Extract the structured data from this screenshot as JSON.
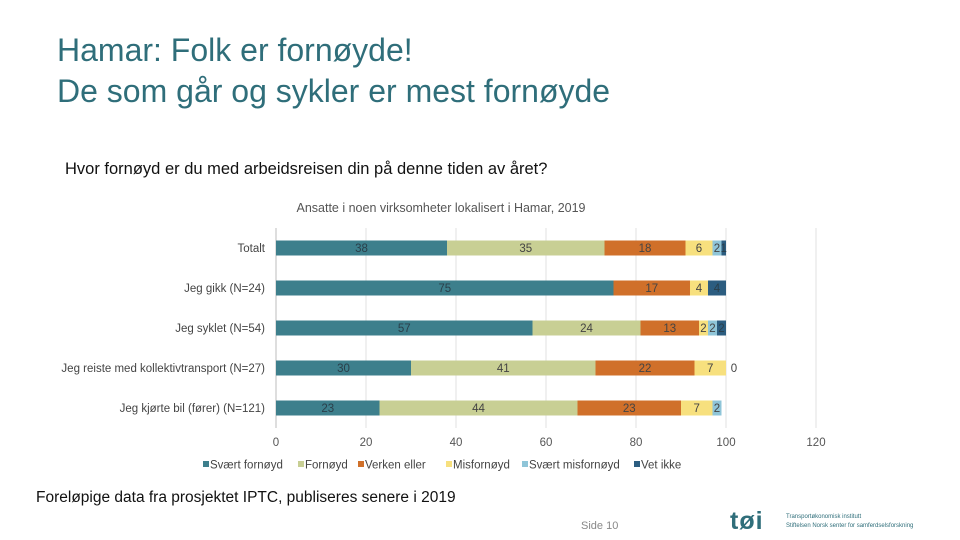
{
  "slide": {
    "title_line1": "Hamar: Folk er fornøyde!",
    "title_line2": "De som går og sykler er mest fornøyde",
    "question": "Hvor fornøyd er du med arbeidsreisen din på denne tiden av året?",
    "footnote": "Foreløpige data fra prosjektet IPTC, publiseres senere i 2019",
    "page_label": "Side",
    "page_number": "10",
    "logo": {
      "mark": "tøi",
      "line1": "Transportøkonomisk institutt",
      "line2": "Stiftelsen Norsk senter for samferdselsforskning"
    }
  },
  "chart_data": {
    "type": "bar",
    "orientation": "horizontal-stacked",
    "title": "Ansatte i noen virksomheter lokalisert i Hamar, 2019",
    "categories": [
      "Totalt",
      "Jeg gikk (N=24)",
      "Jeg syklet (N=54)",
      "Jeg reiste med kollektivtransport (N=27)",
      "Jeg kjørte bil (fører) (N=121)"
    ],
    "series": [
      {
        "name": "Svært fornøyd",
        "color": "#3d7f8c",
        "values": [
          38,
          75,
          57,
          30,
          23
        ]
      },
      {
        "name": "Fornøyd",
        "color": "#c8cf94",
        "values": [
          35,
          0,
          24,
          41,
          44
        ]
      },
      {
        "name": "Verken eller",
        "color": "#d0702a",
        "values": [
          18,
          17,
          13,
          22,
          23
        ]
      },
      {
        "name": "Misfornøyd",
        "color": "#f7e07e",
        "values": [
          6,
          4,
          2,
          7,
          7
        ]
      },
      {
        "name": "Svært misfornøyd",
        "color": "#8fc5d8",
        "values": [
          2,
          0,
          2,
          0,
          2
        ]
      },
      {
        "name": "Vet ikke",
        "color": "#2c5d80",
        "values": [
          1,
          4,
          2,
          0,
          0
        ]
      }
    ],
    "xlim": [
      0,
      120
    ],
    "xticks": [
      0,
      20,
      40,
      60,
      80,
      100,
      120
    ],
    "legend_position": "bottom"
  }
}
